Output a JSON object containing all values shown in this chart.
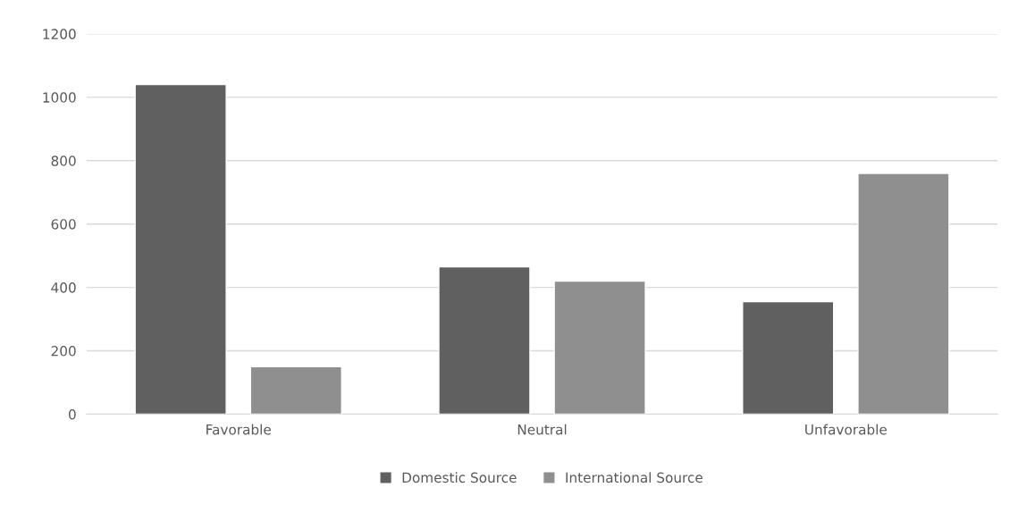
{
  "chart_data": {
    "type": "bar",
    "categories": [
      "Favorable",
      "Neutral",
      "Unfavorable"
    ],
    "series": [
      {
        "name": "Domestic Source",
        "color": "#606060",
        "values": [
          1040,
          465,
          355
        ]
      },
      {
        "name": "International Source",
        "color": "#8f8f8f",
        "values": [
          150,
          420,
          760
        ]
      }
    ],
    "ylim": [
      0,
      1200
    ],
    "yticks": [
      0,
      200,
      400,
      600,
      800,
      1000,
      1200
    ],
    "grid": "y",
    "legend": "bottom"
  }
}
